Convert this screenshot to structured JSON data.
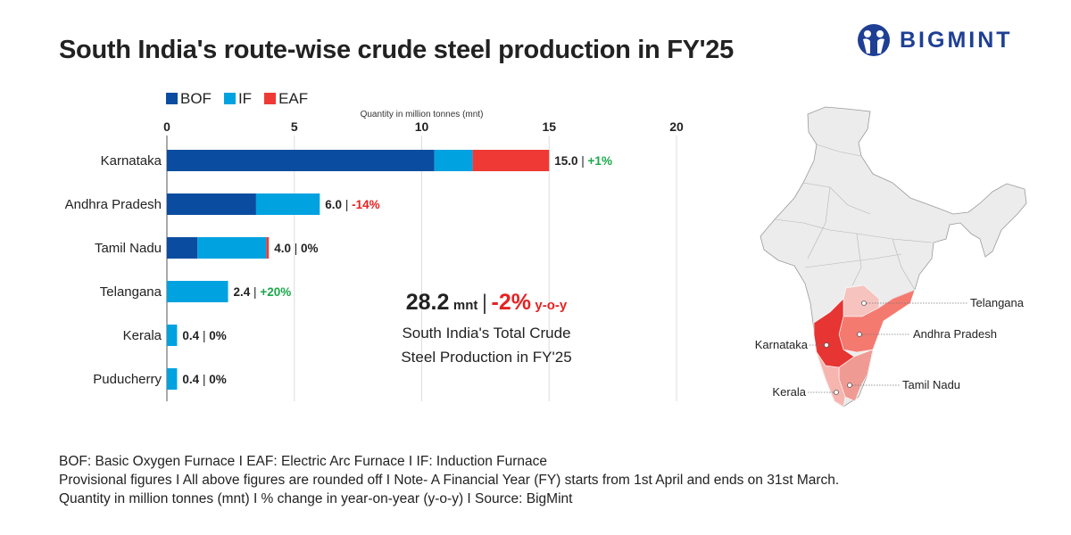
{
  "title": "South India's route-wise crude steel production in FY'25",
  "logo": {
    "text": "BIGMINT",
    "color": "#1f3f94"
  },
  "chart_data": {
    "type": "bar",
    "stacked": true,
    "orientation": "horizontal",
    "xlabel": "Quantity in million tonnes (mnt)",
    "xlim": [
      0,
      20
    ],
    "xticks": [
      "0",
      "5",
      "10",
      "15",
      "20"
    ],
    "grid": true,
    "legend_position": "top-left",
    "categories": [
      "Karnataka",
      "Andhra Pradesh",
      "Tamil Nadu",
      "Telangana",
      "Kerala",
      "Puducherry"
    ],
    "series": [
      {
        "name": "BOF",
        "color": "#0a4da0",
        "values": [
          10.5,
          3.5,
          1.2,
          0,
          0,
          0
        ]
      },
      {
        "name": "IF",
        "color": "#00a2e0",
        "values": [
          1.5,
          2.5,
          2.7,
          2.4,
          0.4,
          0.4
        ]
      },
      {
        "name": "EAF",
        "color": "#ef3935",
        "values": [
          3.0,
          0,
          0.1,
          0,
          0,
          0
        ]
      }
    ],
    "totals": [
      "15.0",
      "6.0",
      "4.0",
      "2.4",
      "0.4",
      "0.4"
    ],
    "changes": [
      "+1%",
      "-14%",
      "0%",
      "+20%",
      "0%",
      "0%"
    ]
  },
  "colors": {
    "positive": "#1aa84a",
    "negative": "#e52222",
    "neutral": "#222222"
  },
  "summary": {
    "value": "28.2",
    "unit": "mnt",
    "change": "-2%",
    "change_suffix": "y-o-y",
    "line1": "South India's Total Crude",
    "line2": "Steel Production in FY'25"
  },
  "map": {
    "labels": [
      "Telangana",
      "Andhra Pradesh",
      "Karnataka",
      "Tamil Nadu",
      "Kerala"
    ]
  },
  "notes": [
    "BOF: Basic Oxygen Furnace  I  EAF: Electric Arc Furnace  I  IF: Induction Furnace",
    "Provisional figures  I  All above figures are rounded off  I  Note- A Financial Year (FY) starts from 1st April and ends on 31st March.",
    "Quantity in million tonnes (mnt)  I  % change in year-on-year (y-o-y)  I  Source: BigMint"
  ]
}
